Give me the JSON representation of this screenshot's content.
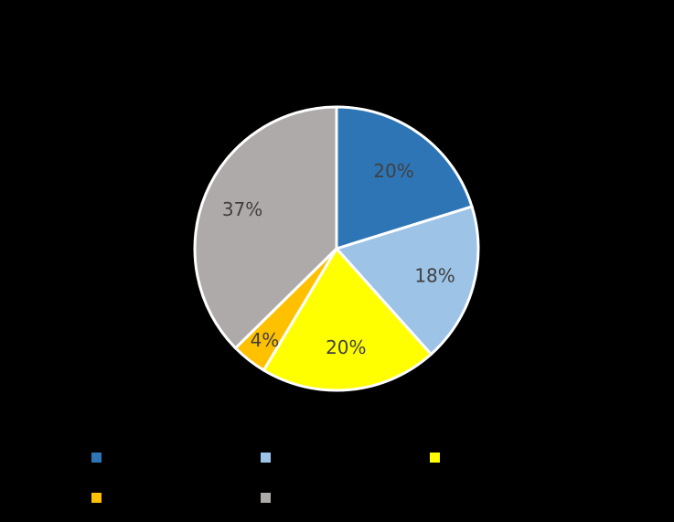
{
  "chart_data": {
    "type": "pie",
    "title": "",
    "categories": [
      "",
      "",
      "",
      "",
      ""
    ],
    "values": [
      20,
      18,
      20,
      4,
      37
    ],
    "value_labels": [
      "20%",
      "18%",
      "20%",
      "4%",
      "37%"
    ],
    "colors": [
      "#2e75b6",
      "#9dc3e6",
      "#ffff00",
      "#ffc000",
      "#aeaaaa"
    ],
    "border_color": "#ffffff",
    "legend_position": "bottom"
  }
}
